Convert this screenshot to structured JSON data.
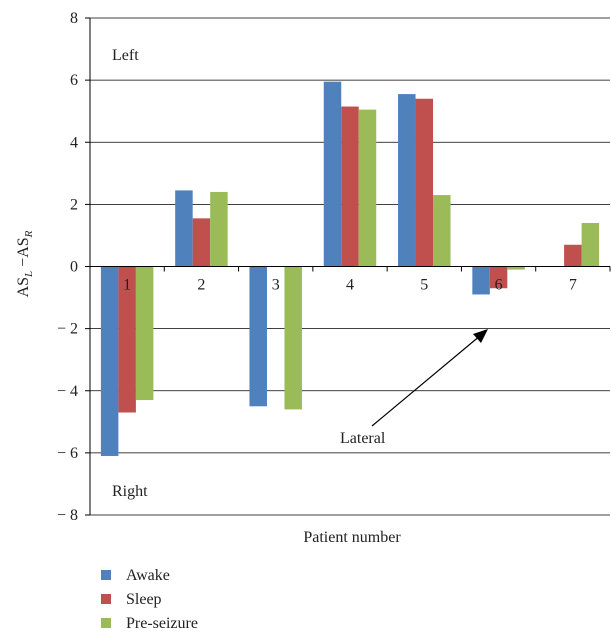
{
  "chart_data": {
    "type": "bar",
    "categories": [
      "1",
      "2",
      "3",
      "4",
      "5",
      "6",
      "7"
    ],
    "series": [
      {
        "name": "Awake",
        "color": "#4F81BD",
        "values": [
          -6.1,
          2.45,
          -4.5,
          5.95,
          5.55,
          -0.9,
          0
        ]
      },
      {
        "name": "Sleep",
        "color": "#C0504D",
        "values": [
          -4.7,
          1.55,
          0,
          5.15,
          5.4,
          -0.7,
          0.7
        ]
      },
      {
        "name": "Pre-seizure",
        "color": "#9BBB59",
        "values": [
          -4.3,
          2.4,
          -4.6,
          5.05,
          2.3,
          -0.1,
          1.4
        ]
      }
    ],
    "ylim": [
      -8,
      8
    ],
    "yticks": [
      "8",
      "6",
      "4",
      "2",
      "0",
      "− 2",
      "− 4",
      "− 6",
      "− 8"
    ],
    "ytick_values": [
      8,
      6,
      4,
      2,
      0,
      -2,
      -4,
      -6,
      -8
    ],
    "ylabel": {
      "base1": "AS",
      "sub1": "L",
      "mid": " −AS",
      "sub2": "R"
    },
    "xlabel": "Patient number",
    "grid": true,
    "legend_position": "bottom-left",
    "annotations": {
      "top": "Left",
      "bottom": "Right",
      "arrow": "Lateral"
    }
  }
}
